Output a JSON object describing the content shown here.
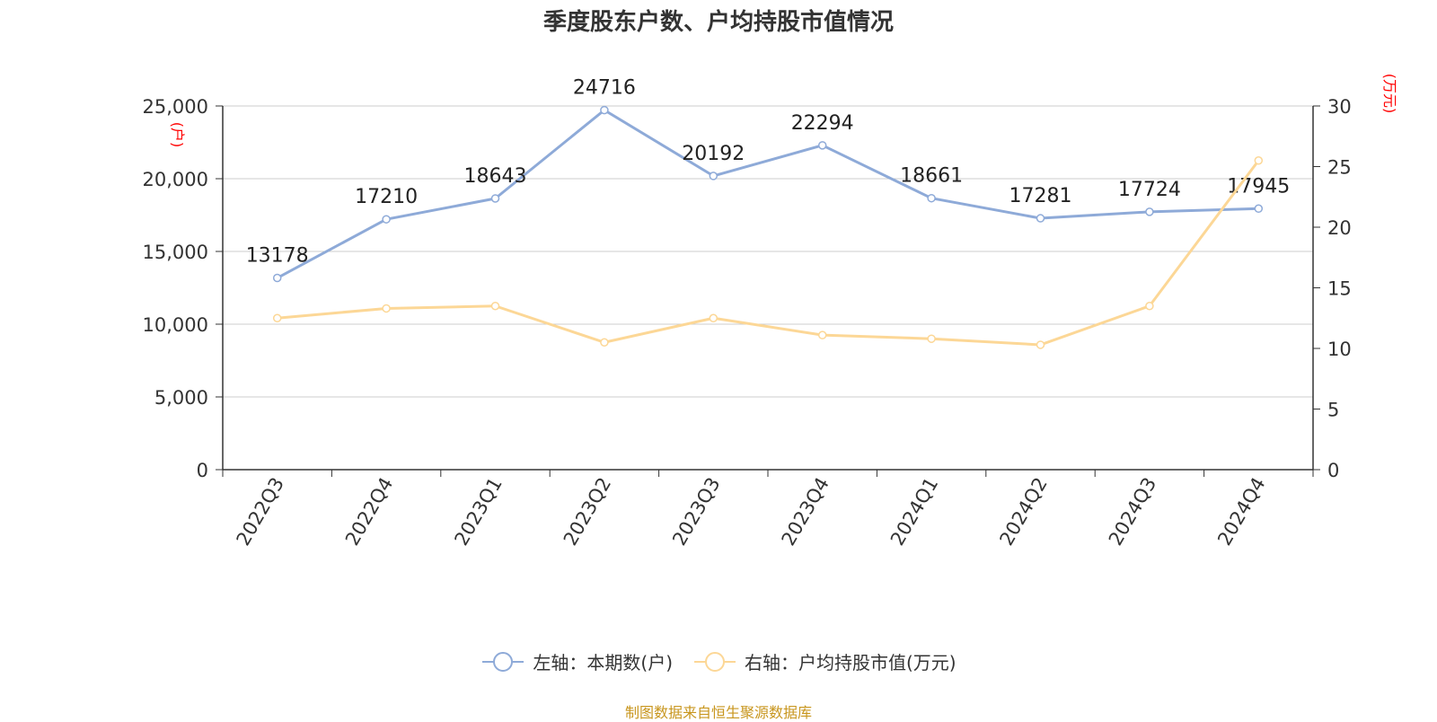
{
  "title": "季度股东户数、户均持股市值情况",
  "footer": "制图数据来自恒生聚源数据库",
  "colors": {
    "left_series": "#8eaad8",
    "right_series": "#fcd796",
    "unit_label": "#ff0000",
    "grid": "#cccccc",
    "axis": "#333333"
  },
  "chart_data": {
    "type": "line",
    "categories": [
      "2022Q3",
      "2022Q4",
      "2023Q1",
      "2023Q2",
      "2023Q3",
      "2023Q4",
      "2024Q1",
      "2024Q2",
      "2024Q3",
      "2024Q4"
    ],
    "series": [
      {
        "name": "左轴：本期数(户)",
        "axis": "left",
        "values": [
          13178,
          17210,
          18643,
          24716,
          20192,
          22294,
          18661,
          17281,
          17724,
          17945
        ],
        "data_labels": true
      },
      {
        "name": "右轴：户均持股市值(万元)",
        "axis": "right",
        "values": [
          12.5,
          13.3,
          13.5,
          10.5,
          12.5,
          11.1,
          10.8,
          10.3,
          13.5,
          25.5
        ],
        "data_labels": false
      }
    ],
    "left_axis": {
      "unit": "(户)",
      "ylim": [
        0,
        25000
      ],
      "ticks": [
        0,
        5000,
        10000,
        15000,
        20000,
        25000
      ],
      "tick_labels": [
        "0",
        "5,000",
        "10,000",
        "15,000",
        "20,000",
        "25,000"
      ]
    },
    "right_axis": {
      "unit": "(万元)",
      "ylim": [
        0,
        30
      ],
      "ticks": [
        0,
        5,
        10,
        15,
        20,
        25,
        30
      ],
      "tick_labels": [
        "0",
        "5",
        "10",
        "15",
        "20",
        "25",
        "30"
      ]
    },
    "grid": true,
    "legend_position": "bottom-center"
  }
}
